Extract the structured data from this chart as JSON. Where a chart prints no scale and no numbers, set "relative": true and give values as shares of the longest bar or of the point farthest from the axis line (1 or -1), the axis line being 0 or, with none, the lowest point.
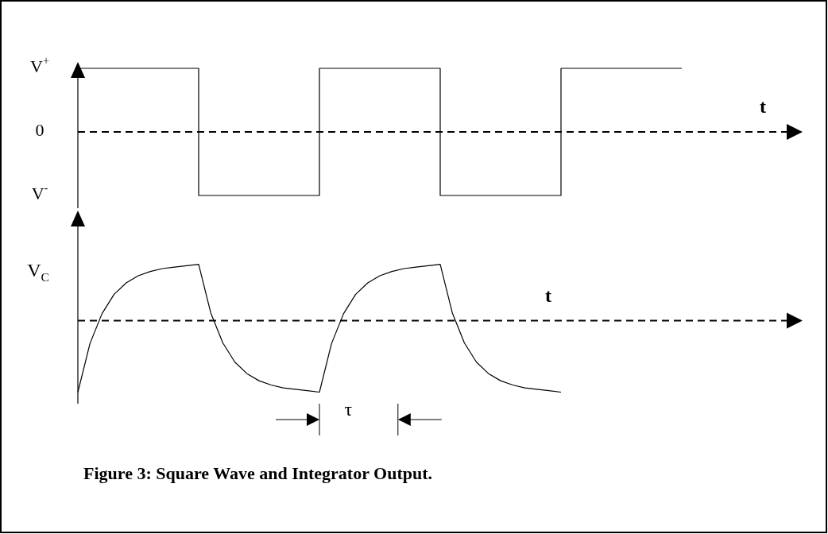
{
  "chart_data": [
    {
      "type": "step",
      "relative": true,
      "xlabel": "t",
      "categories": [
        null,
        null,
        null,
        null,
        null,
        null
      ],
      "annotations": [
        "V$^{+}$",
        "0",
        "V$^{-}$"
      ],
      "ref_lines": [
        {
          "axis": "y",
          "value": 0,
          "line_style": "dashed",
          "color": "#000000"
        }
      ],
      "series": [
        {
          "color": "#000000",
          "values": [
            1,
            -1,
            1,
            -1,
            1,
            1
          ]
        }
      ]
    },
    {
      "type": "line",
      "relative": true,
      "xlabel": "t",
      "ylabel": "V$_{C}$",
      "ref_lines": [
        {
          "axis": "y",
          "value": 0,
          "line_style": "dashed",
          "color": "#000000"
        }
      ],
      "categories": [
        null,
        null,
        null,
        null,
        null,
        null,
        null,
        null,
        null,
        null,
        null,
        null,
        null,
        null,
        null,
        null,
        null,
        null,
        null,
        null,
        null,
        null,
        null,
        null,
        null,
        null,
        null,
        null,
        null,
        null,
        null,
        null,
        null,
        null,
        null,
        null,
        null,
        null,
        null,
        null,
        null
      ],
      "annotations": [
        "τ",
        "Figure 3: Square Wave and Integrator Output."
      ],
      "series": [
        {
          "color": "#000000",
          "values": [
            -1,
            -0.32,
            0.1,
            0.37,
            0.53,
            0.63,
            0.69,
            0.73,
            0.75,
            0.77,
            0.79,
            0.11,
            -0.31,
            -0.58,
            -0.74,
            -0.84,
            -0.9,
            -0.94,
            -0.96,
            -0.98,
            -1,
            -0.32,
            0.1,
            0.37,
            0.53,
            0.63,
            0.69,
            0.73,
            0.75,
            0.77,
            0.79,
            0.11,
            -0.31,
            -0.58,
            -0.74,
            -0.84,
            -0.9,
            -0.94,
            -0.96,
            -0.98,
            -1
          ]
        }
      ]
    }
  ]
}
